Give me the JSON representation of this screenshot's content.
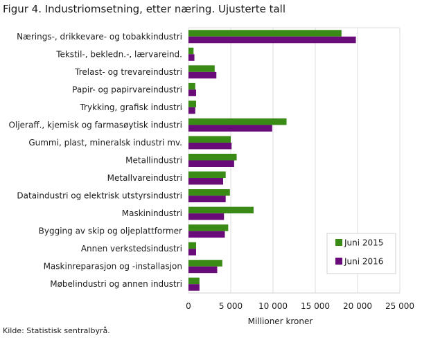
{
  "title": "Figur 4. Industriomsetning, etter næring. Ujusterte tall",
  "source": "Kilde: Statistisk sentralbyrå.",
  "chart_data": {
    "type": "bar",
    "orientation": "horizontal",
    "categories": [
      "Nærings-, drikkevare- og tobakkindustri",
      "Tekstil-, bekledn.-, lærvareind.",
      "Trelast- og trevareindustri",
      "Papir- og papirvareindustri",
      "Trykking, grafisk industri",
      "Oljeraff., kjemisk og farmasøytisk industri",
      "Gummi, plast, mineralsk industri mv.",
      "Metallindustri",
      "Metallvareindustri",
      "Dataindustri og elektrisk utstyrsindustri",
      "Maskinindustri",
      "Bygging av skip og oljeplattformer",
      "Annen verkstedsindustri",
      "Maskinreparasjon og -installasjon",
      "Møbelindustri og annen industri"
    ],
    "series": [
      {
        "name": "Juni 2015",
        "color": "#3a8a16",
        "values": [
          18100,
          600,
          3100,
          800,
          900,
          11600,
          5000,
          5700,
          4400,
          4900,
          7700,
          4700,
          900,
          4000,
          1300
        ]
      },
      {
        "name": "Juni 2016",
        "color": "#6a0b7a",
        "values": [
          19800,
          700,
          3300,
          900,
          800,
          9900,
          5100,
          5400,
          4100,
          4400,
          4200,
          4300,
          900,
          3400,
          1300
        ]
      }
    ],
    "xlabel": "Millioner  kroner",
    "xlim": [
      0,
      25000
    ],
    "xticks": [
      0,
      5000,
      10000,
      15000,
      20000,
      25000
    ],
    "xtick_labels": [
      "0",
      "5 000",
      "10 000",
      "15 000",
      "20 000",
      "25 000"
    ],
    "grid": true,
    "legend": "bottom-right"
  }
}
